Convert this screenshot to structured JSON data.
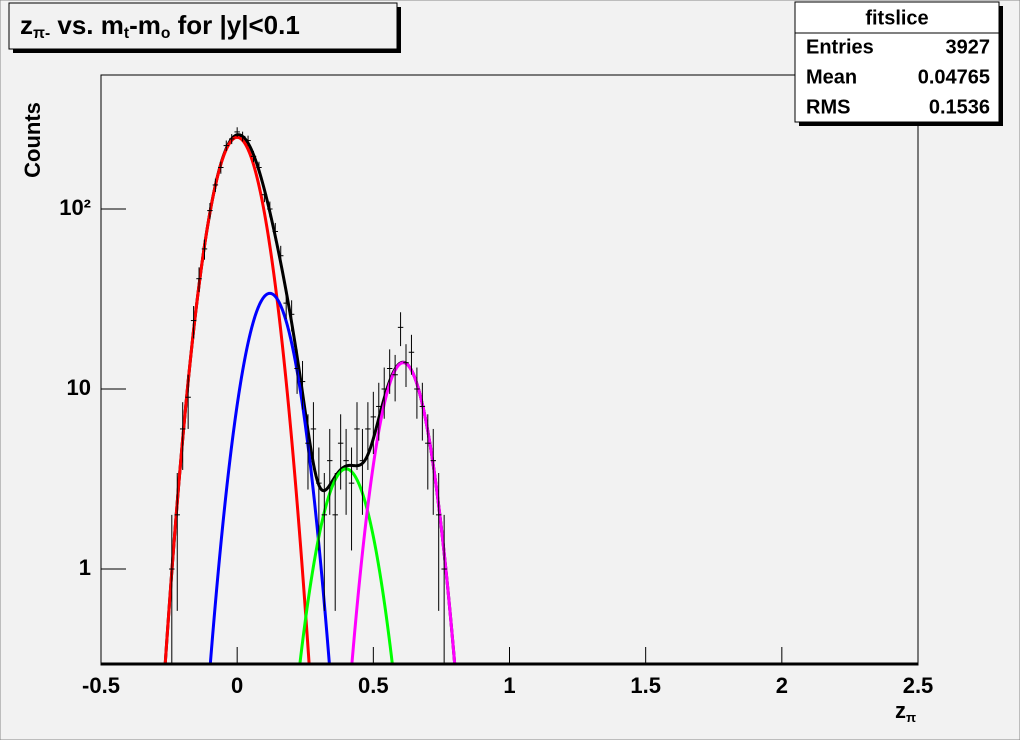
{
  "chart_data": {
    "type": "errorbar",
    "title": [
      {
        "text": "z"
      },
      {
        "text": "π-",
        "sub": true
      },
      {
        "text": " vs. m"
      },
      {
        "text": "t",
        "sub": true
      },
      {
        "text": "-m"
      },
      {
        "text": "o",
        "sub": true
      },
      {
        "text": " for |y|<0.1"
      }
    ],
    "x_label": [
      {
        "text": "z"
      },
      {
        "text": "π",
        "sub": true
      }
    ],
    "y_label": "Counts",
    "log_y": true,
    "xlim": [
      -0.5,
      2.5
    ],
    "xticks": [
      -0.5,
      0,
      0.5,
      1,
      1.5,
      2,
      2.5
    ],
    "ylim": [
      0.293,
      555
    ],
    "yticks": [
      1,
      10,
      {
        "value": 100,
        "label": "10²"
      }
    ],
    "bin_width": 0.02,
    "color": "#000000",
    "x": [
      -0.24,
      -0.22,
      -0.2,
      -0.18,
      -0.16,
      -0.14,
      -0.12,
      -0.1,
      -0.08,
      -0.06,
      -0.04,
      -0.02,
      0,
      0.02,
      0.04,
      0.06,
      0.08,
      0.1,
      0.12,
      0.14,
      0.16,
      0.18,
      0.2,
      0.22,
      0.24,
      0.26,
      0.28,
      0.3,
      0.32,
      0.34,
      0.36,
      0.38,
      0.4,
      0.42,
      0.44,
      0.46,
      0.48,
      0.5,
      0.52,
      0.54,
      0.56,
      0.58,
      0.6,
      0.62,
      0.64,
      0.66,
      0.68,
      0.7,
      0.72,
      0.74,
      0.76
    ],
    "values": [
      1,
      2,
      6,
      9,
      24,
      41,
      60,
      98,
      136,
      170,
      225,
      245,
      268,
      253,
      240,
      196,
      170,
      120,
      100,
      75,
      55,
      30,
      26,
      13,
      11,
      5,
      6,
      3,
      2,
      4,
      2,
      5,
      4,
      3,
      6,
      4,
      6,
      7,
      8,
      10,
      13,
      12,
      22,
      14,
      16,
      10,
      8,
      5,
      4,
      2,
      1
    ],
    "fits": [
      {
        "color": "#ff0000",
        "constant": 250,
        "mean": 0,
        "sigma": 0.072,
        "range": [
          -0.33,
          0.3
        ]
      },
      {
        "color": "#0000ff",
        "constant": 34,
        "mean": 0.12,
        "sigma": 0.071,
        "range": [
          -0.21,
          0.36
        ]
      },
      {
        "color": "#00ff00",
        "constant": 3.6,
        "mean": 0.4,
        "sigma": 0.076,
        "range": [
          0.1,
          0.7
        ]
      },
      {
        "color": "#ff00ff",
        "constant": 14,
        "mean": 0.61,
        "sigma": 0.068,
        "range": [
          0.38,
          0.9
        ]
      }
    ],
    "total_fit": {
      "color": "#000000",
      "range": [
        -0.33,
        0.9
      ]
    },
    "stats": {
      "title": "fitslice",
      "rows": [
        {
          "label": "Entries",
          "value": 3927
        },
        {
          "label": "Mean",
          "value": 0.04765
        },
        {
          "label": "RMS",
          "value": 0.1536
        }
      ]
    }
  }
}
